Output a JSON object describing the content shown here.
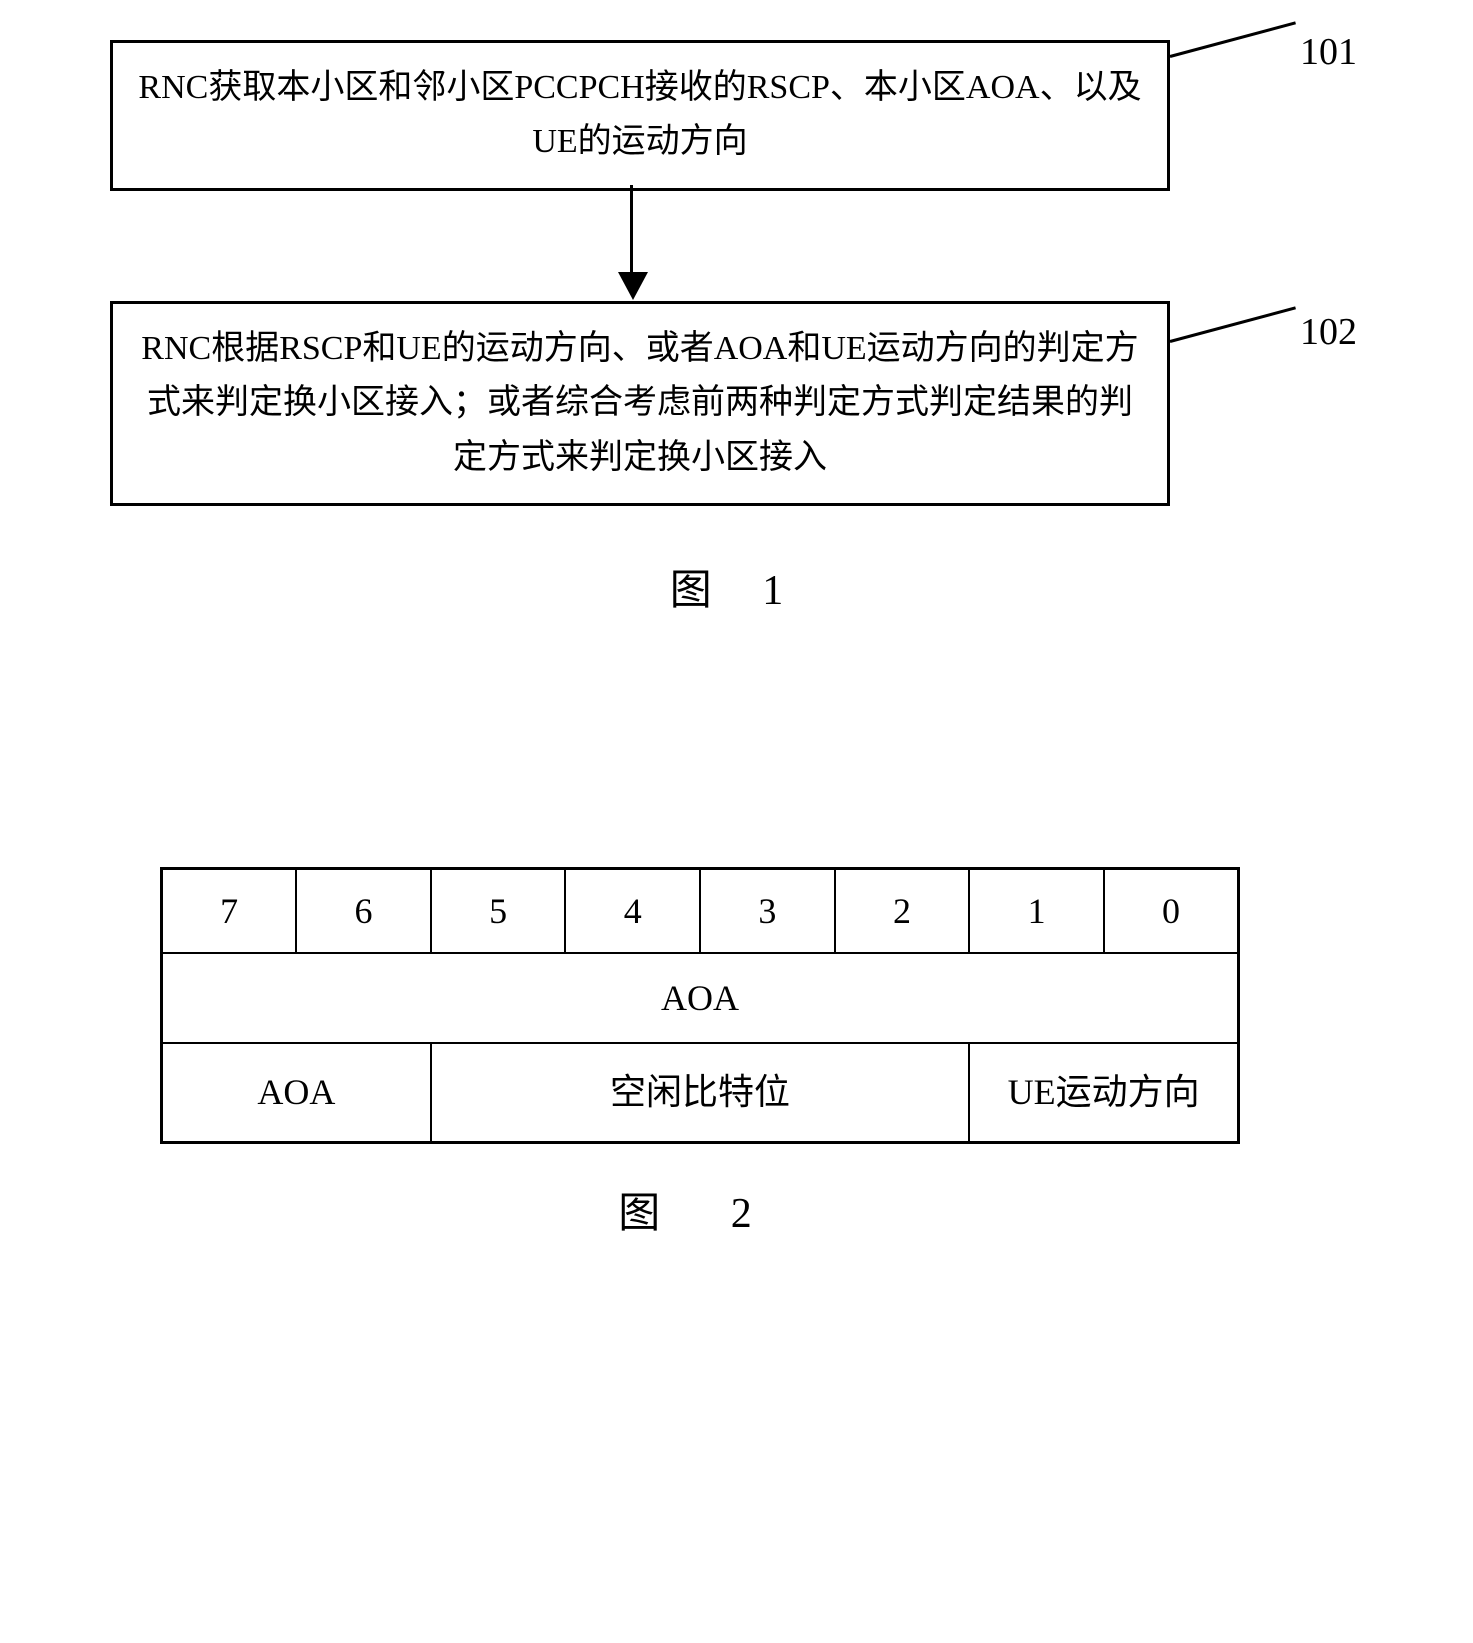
{
  "flowchart": {
    "box1": {
      "text": "RNC获取本小区和邻小区PCCPCH接收的RSCP、本小区AOA、以及UE的运动方向",
      "label": "101",
      "border_color": "#000000",
      "border_width": 3,
      "font_size": 34
    },
    "box2": {
      "text": "RNC根据RSCP和UE的运动方向、或者AOA和UE运动方向的判定方式来判定换小区接入；或者综合考虑前两种判定方式判定结果的判定方式来判定换小区接入",
      "label": "102",
      "border_color": "#000000",
      "border_width": 3,
      "font_size": 34
    },
    "arrow": {
      "color": "#000000",
      "width": 3
    },
    "caption": "图 1"
  },
  "bit_table": {
    "headers": [
      "7",
      "6",
      "5",
      "4",
      "3",
      "2",
      "1",
      "0"
    ],
    "row2_full": "AOA",
    "row3": {
      "cell1": "AOA",
      "cell2": "空闲比特位",
      "cell3": "UE运动方向"
    },
    "border_color": "#000000",
    "border_width": 2,
    "font_size": 36,
    "caption": "图 2"
  },
  "styling": {
    "background_color": "#ffffff",
    "text_color": "#000000",
    "font_family": "SimSun"
  }
}
